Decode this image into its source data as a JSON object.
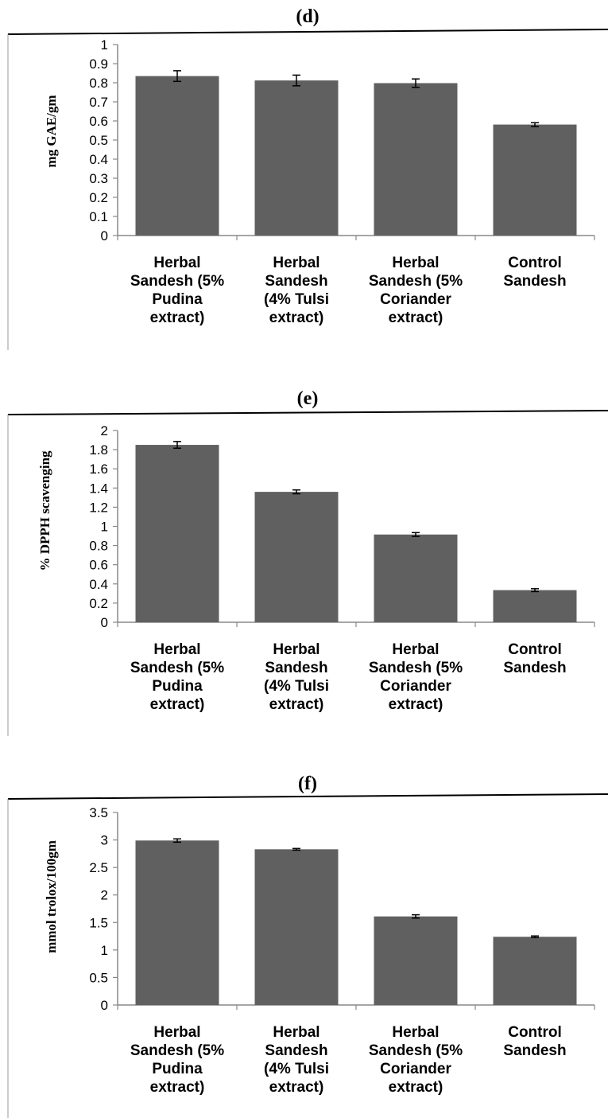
{
  "chart_data": [
    {
      "type": "bar",
      "title": "(d)",
      "ylabel": "mg GAE/gm",
      "xlabel": "",
      "ylim": [
        0,
        1
      ],
      "yticks": [
        "0",
        "0.1",
        "0.2",
        "0.3",
        "0.4",
        "0.5",
        "0.6",
        "0.7",
        "0.8",
        "0.9",
        "1"
      ],
      "categories": [
        [
          "Herbal",
          "Sandesh (5%",
          "Pudina",
          "extract)"
        ],
        [
          "Herbal",
          "Sandesh",
          "(4% Tulsi",
          "extract)"
        ],
        [
          "Herbal",
          "Sandesh (5%",
          "Coriander",
          "extract)"
        ],
        [
          "Control",
          "Sandesh"
        ]
      ],
      "values": [
        0.835,
        0.812,
        0.798,
        0.581
      ],
      "errors": [
        0.028,
        0.028,
        0.022,
        0.01
      ],
      "bar_color": "#606060",
      "grid": false,
      "legend": "none"
    },
    {
      "type": "bar",
      "title": "(e)",
      "ylabel": "% DPPH scavenging",
      "xlabel": "",
      "ylim": [
        0,
        2
      ],
      "yticks": [
        "0",
        "0.2",
        "0.4",
        "0.6",
        "0.8",
        "1",
        "1.2",
        "1.4",
        "1.6",
        "1.8",
        "2"
      ],
      "categories": [
        [
          "Herbal",
          "Sandesh (5%",
          "Pudina",
          "extract)"
        ],
        [
          "Herbal",
          "Sandesh",
          "(4% Tulsi",
          "extract)"
        ],
        [
          "Herbal",
          "Sandesh (5%",
          "Coriander",
          "extract)"
        ],
        [
          "Control",
          "Sandesh"
        ]
      ],
      "values": [
        1.85,
        1.36,
        0.915,
        0.335
      ],
      "errors": [
        0.035,
        0.02,
        0.02,
        0.015
      ],
      "bar_color": "#606060",
      "grid": false,
      "legend": "none"
    },
    {
      "type": "bar",
      "title": "(f)",
      "ylabel": "mmol trolox/100gm",
      "xlabel": "",
      "ylim": [
        0,
        3.5
      ],
      "yticks": [
        "0",
        "0.5",
        "1",
        "1.5",
        "2",
        "2.5",
        "3",
        "3.5"
      ],
      "categories": [
        [
          "Herbal",
          "Sandesh (5%",
          "Pudina",
          "extract)"
        ],
        [
          "Herbal",
          "Sandesh",
          "(4% Tulsi",
          "extract)"
        ],
        [
          "Herbal",
          "Sandesh (5%",
          "Coriander",
          "extract)"
        ],
        [
          "Control",
          "Sandesh"
        ]
      ],
      "values": [
        2.99,
        2.83,
        1.61,
        1.24
      ],
      "errors": [
        0.03,
        0.015,
        0.03,
        0.015
      ],
      "bar_color": "#606060",
      "grid": false,
      "legend": "none"
    }
  ]
}
